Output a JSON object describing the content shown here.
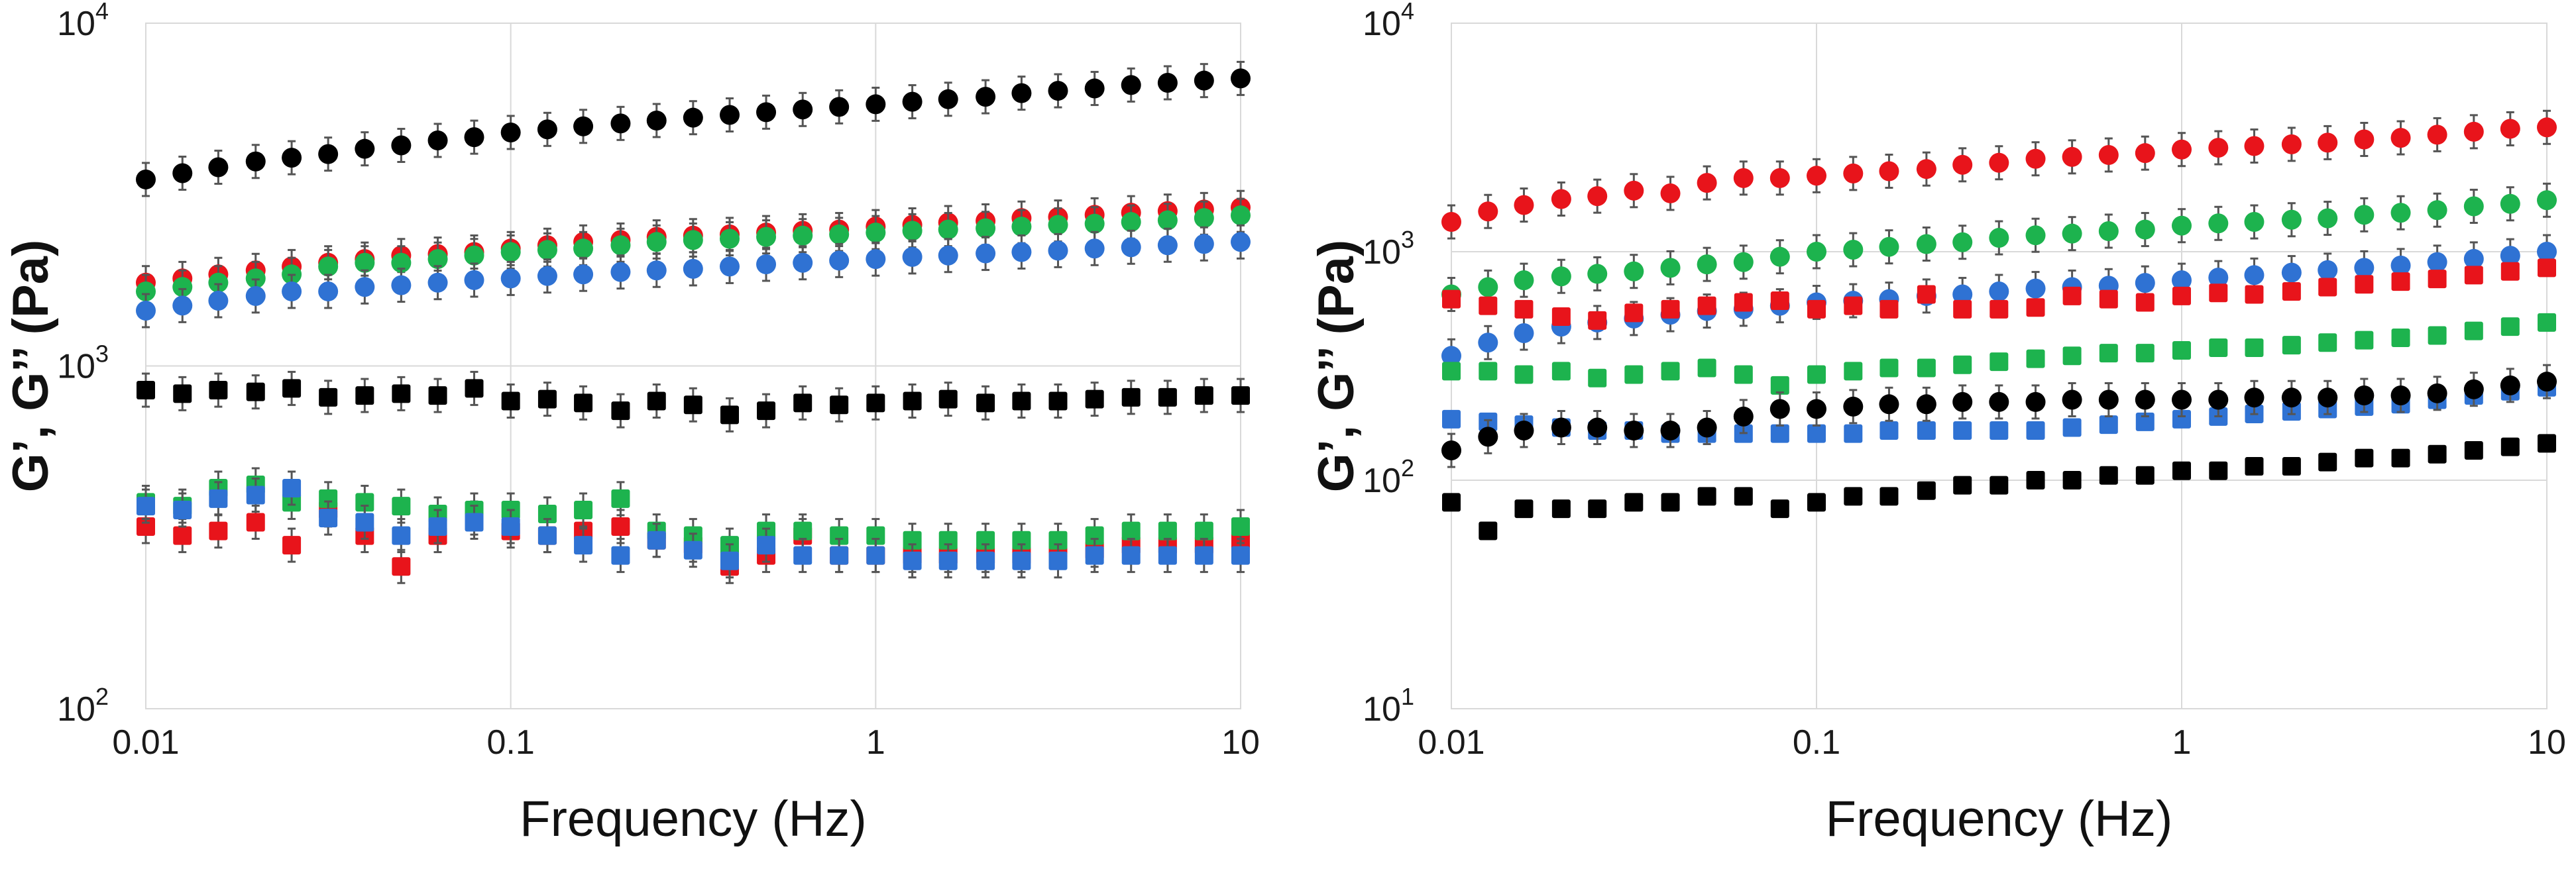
{
  "chart_data": [
    {
      "type": "scatter",
      "title": "",
      "xlabel": "Frequency (Hz)",
      "ylabel": "G’, G’’ (Pa)",
      "xscale": "log",
      "yscale": "log",
      "xlim": [
        0.01,
        10
      ],
      "ylim": [
        100,
        10000
      ],
      "grid": true,
      "x_ticks": [
        {
          "value": 0.01,
          "label": "0.01"
        },
        {
          "value": 0.1,
          "label": "0.1"
        },
        {
          "value": 1,
          "label": "1"
        },
        {
          "value": 10,
          "label": "10"
        }
      ],
      "y_ticks": [
        {
          "value": 100,
          "base": "10",
          "exp": "2"
        },
        {
          "value": 1000,
          "base": "10",
          "exp": "3"
        },
        {
          "value": 10000,
          "base": "10",
          "exp": "4"
        }
      ],
      "x": [
        0.01,
        0.0126,
        0.0158,
        0.02,
        0.0251,
        0.0316,
        0.0398,
        0.0501,
        0.0631,
        0.0794,
        0.1,
        0.126,
        0.158,
        0.2,
        0.251,
        0.316,
        0.398,
        0.501,
        0.631,
        0.794,
        1,
        1.26,
        1.58,
        2,
        2.51,
        3.16,
        3.98,
        5.01,
        6.31,
        7.94,
        10
      ],
      "series": [
        {
          "name": "black G'",
          "marker": "circle",
          "color": "#000000",
          "values": [
            3500,
            3650,
            3800,
            3950,
            4050,
            4150,
            4300,
            4400,
            4550,
            4650,
            4800,
            4900,
            5000,
            5100,
            5200,
            5300,
            5400,
            5500,
            5600,
            5700,
            5800,
            5900,
            6000,
            6100,
            6250,
            6350,
            6450,
            6600,
            6700,
            6800,
            6900
          ]
        },
        {
          "name": "red G'",
          "marker": "circle",
          "color": "#e8141b",
          "values": [
            1750,
            1800,
            1850,
            1900,
            1950,
            2000,
            2050,
            2100,
            2120,
            2150,
            2200,
            2250,
            2300,
            2330,
            2380,
            2400,
            2420,
            2450,
            2480,
            2500,
            2550,
            2580,
            2620,
            2650,
            2700,
            2720,
            2760,
            2800,
            2830,
            2860,
            2900
          ]
        },
        {
          "name": "green G'",
          "marker": "circle",
          "color": "#1db34e",
          "values": [
            1650,
            1700,
            1750,
            1800,
            1850,
            1950,
            2000,
            2000,
            2050,
            2100,
            2150,
            2180,
            2200,
            2250,
            2300,
            2330,
            2350,
            2380,
            2400,
            2420,
            2450,
            2480,
            2500,
            2520,
            2550,
            2580,
            2600,
            2630,
            2660,
            2700,
            2750
          ]
        },
        {
          "name": "blue G'",
          "marker": "circle",
          "color": "#2f72d3",
          "values": [
            1450,
            1500,
            1550,
            1600,
            1650,
            1650,
            1700,
            1720,
            1750,
            1780,
            1800,
            1830,
            1850,
            1880,
            1900,
            1920,
            1950,
            1980,
            2000,
            2030,
            2050,
            2080,
            2100,
            2130,
            2150,
            2170,
            2200,
            2220,
            2250,
            2270,
            2300
          ]
        },
        {
          "name": "black G''",
          "marker": "square",
          "color": "#000000",
          "values": [
            850,
            830,
            850,
            840,
            860,
            810,
            820,
            830,
            820,
            860,
            790,
            800,
            780,
            740,
            790,
            770,
            720,
            740,
            780,
            770,
            780,
            790,
            800,
            780,
            790,
            790,
            800,
            810,
            810,
            820,
            820
          ]
        },
        {
          "name": "red G''",
          "marker": "square",
          "color": "#e8141b",
          "values": [
            340,
            320,
            330,
            350,
            300,
            380,
            320,
            260,
            320,
            360,
            330,
            320,
            330,
            340,
            310,
            300,
            260,
            280,
            320,
            280,
            280,
            280,
            280,
            280,
            280,
            290,
            290,
            300,
            300,
            300,
            310
          ]
        },
        {
          "name": "green G''",
          "marker": "square",
          "color": "#1db34e",
          "values": [
            400,
            390,
            440,
            450,
            400,
            410,
            400,
            390,
            370,
            380,
            380,
            370,
            380,
            410,
            330,
            320,
            300,
            330,
            330,
            320,
            320,
            310,
            310,
            310,
            310,
            310,
            320,
            330,
            330,
            330,
            340
          ]
        },
        {
          "name": "blue G''",
          "marker": "square",
          "color": "#2f72d3",
          "values": [
            390,
            380,
            410,
            420,
            440,
            360,
            350,
            320,
            340,
            350,
            340,
            320,
            300,
            280,
            310,
            290,
            270,
            300,
            280,
            280,
            280,
            270,
            270,
            270,
            270,
            270,
            280,
            280,
            280,
            280,
            280
          ]
        }
      ]
    },
    {
      "type": "scatter",
      "title": "",
      "xlabel": "Frequency (Hz)",
      "ylabel": "G’, G’’ (Pa)",
      "xscale": "log",
      "yscale": "log",
      "xlim": [
        0.01,
        10
      ],
      "ylim": [
        10,
        10000
      ],
      "grid": true,
      "x_ticks": [
        {
          "value": 0.01,
          "label": "0.01"
        },
        {
          "value": 0.1,
          "label": "0.1"
        },
        {
          "value": 1,
          "label": "1"
        },
        {
          "value": 10,
          "label": "10"
        }
      ],
      "y_ticks": [
        {
          "value": 10,
          "base": "10",
          "exp": "1"
        },
        {
          "value": 100,
          "base": "10",
          "exp": "2"
        },
        {
          "value": 1000,
          "base": "10",
          "exp": "3"
        },
        {
          "value": 10000,
          "base": "10",
          "exp": "4"
        }
      ],
      "x": [
        0.01,
        0.0126,
        0.0158,
        0.02,
        0.0251,
        0.0316,
        0.0398,
        0.0501,
        0.0631,
        0.0794,
        0.1,
        0.126,
        0.158,
        0.2,
        0.251,
        0.316,
        0.398,
        0.501,
        0.631,
        0.794,
        1,
        1.26,
        1.58,
        2,
        2.51,
        3.16,
        3.98,
        5.01,
        6.31,
        7.94,
        10
      ],
      "series": [
        {
          "name": "red G'",
          "marker": "circle",
          "color": "#e8141b",
          "values": [
            1350,
            1500,
            1600,
            1700,
            1750,
            1850,
            1800,
            2000,
            2100,
            2100,
            2150,
            2200,
            2250,
            2300,
            2400,
            2450,
            2550,
            2600,
            2650,
            2700,
            2800,
            2850,
            2900,
            2950,
            3000,
            3100,
            3150,
            3250,
            3350,
            3450,
            3500
          ]
        },
        {
          "name": "green G'",
          "marker": "circle",
          "color": "#1db34e",
          "values": [
            650,
            700,
            750,
            780,
            800,
            820,
            850,
            880,
            900,
            950,
            1000,
            1020,
            1050,
            1080,
            1100,
            1150,
            1180,
            1200,
            1230,
            1250,
            1300,
            1330,
            1350,
            1380,
            1400,
            1450,
            1480,
            1520,
            1580,
            1620,
            1680
          ]
        },
        {
          "name": "blue G'",
          "marker": "circle",
          "color": "#2f72d3",
          "values": [
            350,
            400,
            440,
            470,
            490,
            510,
            530,
            550,
            560,
            580,
            600,
            610,
            620,
            640,
            650,
            670,
            690,
            700,
            710,
            730,
            750,
            770,
            790,
            810,
            830,
            850,
            870,
            900,
            930,
            960,
            1000
          ]
        },
        {
          "name": "red G''",
          "marker": "square",
          "color": "#e8141b",
          "values": [
            620,
            580,
            560,
            520,
            500,
            540,
            560,
            580,
            600,
            610,
            560,
            580,
            560,
            650,
            560,
            560,
            570,
            640,
            620,
            600,
            640,
            660,
            650,
            670,
            700,
            720,
            740,
            760,
            790,
            820,
            850
          ]
        },
        {
          "name": "green G''",
          "marker": "square",
          "color": "#1db34e",
          "values": [
            300,
            300,
            290,
            300,
            280,
            290,
            300,
            310,
            290,
            260,
            290,
            300,
            310,
            310,
            320,
            330,
            340,
            350,
            360,
            360,
            370,
            380,
            380,
            390,
            400,
            410,
            420,
            430,
            450,
            470,
            490
          ]
        },
        {
          "name": "blue G''",
          "marker": "square",
          "color": "#2f72d3",
          "values": [
            185,
            180,
            175,
            170,
            165,
            165,
            160,
            160,
            160,
            160,
            160,
            160,
            165,
            165,
            165,
            165,
            165,
            170,
            175,
            180,
            185,
            190,
            195,
            200,
            205,
            210,
            215,
            225,
            235,
            245,
            255
          ]
        },
        {
          "name": "black G'",
          "marker": "circle",
          "color": "#000000",
          "values": [
            135,
            155,
            165,
            170,
            170,
            165,
            165,
            170,
            190,
            205,
            205,
            210,
            215,
            215,
            220,
            220,
            220,
            225,
            225,
            225,
            225,
            225,
            230,
            230,
            230,
            235,
            235,
            240,
            250,
            260,
            270
          ]
        },
        {
          "name": "black G''",
          "marker": "square",
          "color": "#000000",
          "values": [
            80,
            60,
            75,
            75,
            75,
            80,
            80,
            85,
            85,
            75,
            80,
            85,
            85,
            90,
            95,
            95,
            100,
            100,
            105,
            105,
            110,
            110,
            115,
            115,
            120,
            125,
            125,
            130,
            135,
            140,
            145
          ]
        }
      ]
    }
  ]
}
